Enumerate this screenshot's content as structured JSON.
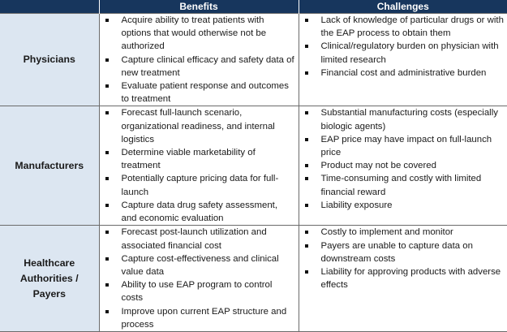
{
  "headers": [
    "",
    "Benefits",
    "Challenges"
  ],
  "rows": [
    {
      "stakeholder": "Physicians",
      "benefits": [
        "Acquire ability to treat patients with options that would otherwise not be authorized",
        "Capture clinical efficacy and safety data of new treatment",
        "Evaluate patient response and outcomes to treatment"
      ],
      "challenges": [
        "Lack of knowledge of particular drugs or with the EAP process to obtain them",
        "Clinical/regulatory burden on physician with limited research",
        "Financial cost and administrative burden"
      ]
    },
    {
      "stakeholder": "Manufacturers",
      "benefits": [
        "Forecast full-launch scenario, organizational readiness, and internal logistics",
        "Determine viable marketability of treatment",
        "Potentially capture pricing data for full-launch",
        "Capture data drug safety assessment, and economic evaluation"
      ],
      "challenges": [
        "Substantial manufacturing costs (especially biologic agents)",
        "EAP price may have impact on full-launch price",
        "Product may not be covered",
        "Time-consuming and costly with limited financial reward",
        "Liability exposure"
      ]
    },
    {
      "stakeholder": "Healthcare Authorities / Payers",
      "benefits": [
        "Forecast post-launch utilization and associated financial cost",
        "Capture cost-effectiveness and clinical value data",
        "Ability to use EAP program to control costs",
        "Improve upon current EAP structure and process"
      ],
      "challenges": [
        "Costly to implement and monitor",
        "Payers are unable to capture data on downstream costs",
        "Liability for approving products with adverse effects"
      ]
    }
  ]
}
